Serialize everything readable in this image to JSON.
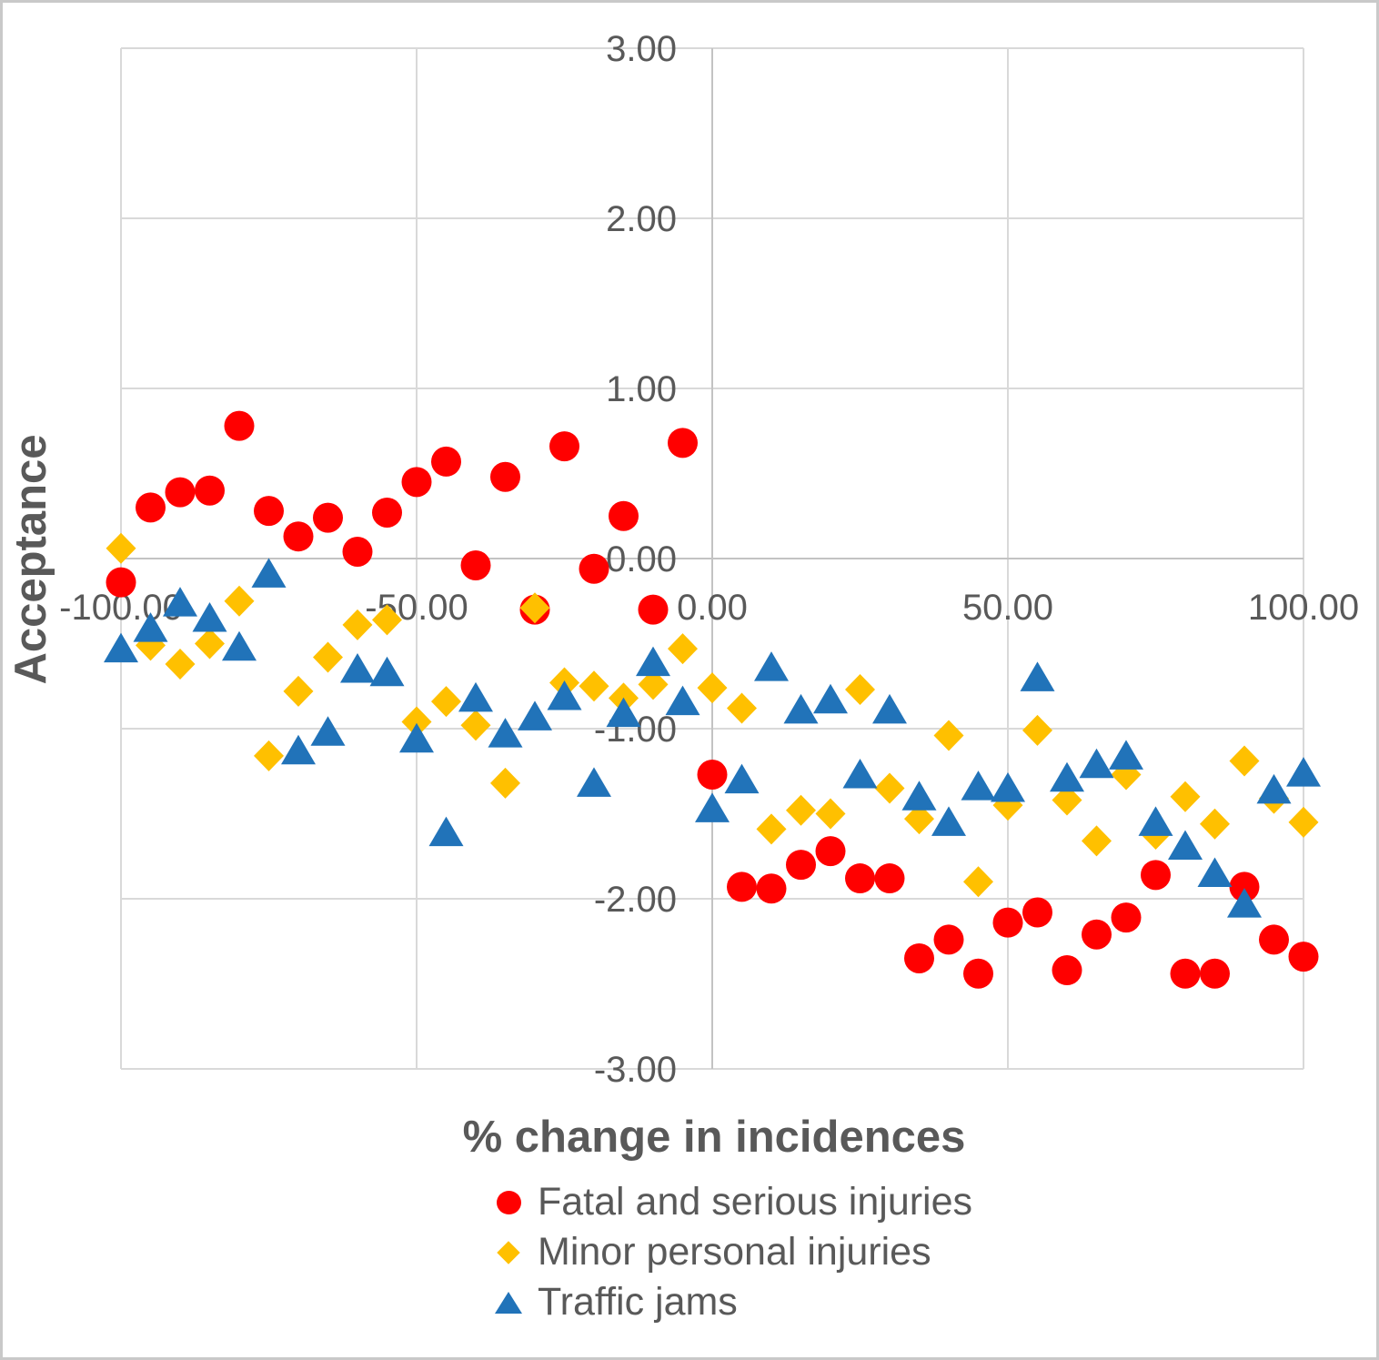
{
  "page": {
    "background": "#FFFFFF",
    "border_color": "#C9C9C9"
  },
  "chart_data": {
    "type": "scatter",
    "title": "",
    "xlabel": "% change in incidences",
    "ylabel": "Acceptance",
    "xlim": [
      -100,
      100
    ],
    "ylim": [
      -3,
      3
    ],
    "grid": true,
    "legend_position": "bottom-center",
    "colors": {
      "gridline": "#D9D9D9",
      "axis_line": "#C3C3C3",
      "text": "#595959"
    },
    "x_ticks": [
      {
        "v": -100,
        "label": "-100.00"
      },
      {
        "v": -50,
        "label": "-50.00"
      },
      {
        "v": 0,
        "label": "0.00"
      },
      {
        "v": 50,
        "label": "50.00"
      },
      {
        "v": 100,
        "label": "100.00"
      }
    ],
    "y_ticks": [
      {
        "v": 3,
        "label": "3.00"
      },
      {
        "v": 2,
        "label": "2.00"
      },
      {
        "v": 1,
        "label": "1.00"
      },
      {
        "v": 0,
        "label": "0.00"
      },
      {
        "v": -1,
        "label": "-1.00"
      },
      {
        "v": -2,
        "label": "-2.00"
      },
      {
        "v": -3,
        "label": "-3.00"
      }
    ],
    "series": [
      {
        "name": "Fatal and serious injuries",
        "marker": "circle",
        "color": "#FF0000",
        "points": [
          [
            -100,
            -0.14
          ],
          [
            -95,
            0.3
          ],
          [
            -90,
            0.39
          ],
          [
            -85,
            0.4
          ],
          [
            -80,
            0.78
          ],
          [
            -75,
            0.28
          ],
          [
            -70,
            0.13
          ],
          [
            -65,
            0.24
          ],
          [
            -60,
            0.04
          ],
          [
            -55,
            0.27
          ],
          [
            -50,
            0.45
          ],
          [
            -45,
            0.57
          ],
          [
            -40,
            -0.04
          ],
          [
            -35,
            0.48
          ],
          [
            -30,
            -0.3
          ],
          [
            -25,
            0.66
          ],
          [
            -20,
            -0.06
          ],
          [
            -15,
            0.25
          ],
          [
            -10,
            -0.3
          ],
          [
            -5,
            0.68
          ],
          [
            0,
            -1.27
          ],
          [
            5,
            -1.93
          ],
          [
            10,
            -1.94
          ],
          [
            15,
            -1.8
          ],
          [
            20,
            -1.72
          ],
          [
            25,
            -1.88
          ],
          [
            30,
            -1.88
          ],
          [
            35,
            -2.35
          ],
          [
            40,
            -2.24
          ],
          [
            45,
            -2.44
          ],
          [
            50,
            -2.14
          ],
          [
            55,
            -2.08
          ],
          [
            60,
            -2.42
          ],
          [
            65,
            -2.21
          ],
          [
            70,
            -2.11
          ],
          [
            75,
            -1.86
          ],
          [
            80,
            -2.44
          ],
          [
            85,
            -2.44
          ],
          [
            90,
            -1.93
          ],
          [
            95,
            -2.24
          ],
          [
            100,
            -2.34
          ]
        ]
      },
      {
        "name": "Minor personal injuries",
        "marker": "diamond",
        "color": "#FFC000",
        "points": [
          [
            -100,
            0.06
          ],
          [
            -95,
            -0.51
          ],
          [
            -90,
            -0.62
          ],
          [
            -85,
            -0.5
          ],
          [
            -80,
            -0.25
          ],
          [
            -75,
            -1.16
          ],
          [
            -70,
            -0.78
          ],
          [
            -65,
            -0.58
          ],
          [
            -60,
            -0.39
          ],
          [
            -55,
            -0.36
          ],
          [
            -50,
            -0.96
          ],
          [
            -45,
            -0.84
          ],
          [
            -40,
            -0.98
          ],
          [
            -35,
            -1.32
          ],
          [
            -30,
            -0.29
          ],
          [
            -25,
            -0.73
          ],
          [
            -20,
            -0.75
          ],
          [
            -15,
            -0.82
          ],
          [
            -10,
            -0.74
          ],
          [
            -5,
            -0.53
          ],
          [
            0,
            -0.76
          ],
          [
            5,
            -0.88
          ],
          [
            10,
            -1.59
          ],
          [
            15,
            -1.48
          ],
          [
            20,
            -1.5
          ],
          [
            25,
            -0.77
          ],
          [
            30,
            -1.35
          ],
          [
            35,
            -1.53
          ],
          [
            40,
            -1.04
          ],
          [
            45,
            -1.9
          ],
          [
            50,
            -1.45
          ],
          [
            55,
            -1.01
          ],
          [
            60,
            -1.42
          ],
          [
            65,
            -1.66
          ],
          [
            70,
            -1.27
          ],
          [
            75,
            -1.62
          ],
          [
            80,
            -1.4
          ],
          [
            85,
            -1.56
          ],
          [
            90,
            -1.19
          ],
          [
            95,
            -1.41
          ],
          [
            100,
            -1.55
          ]
        ]
      },
      {
        "name": "Traffic jams",
        "marker": "triangle",
        "color": "#2173B9",
        "points": [
          [
            -100,
            -0.53
          ],
          [
            -95,
            -0.41
          ],
          [
            -90,
            -0.26
          ],
          [
            -85,
            -0.35
          ],
          [
            -80,
            -0.52
          ],
          [
            -75,
            -0.09
          ],
          [
            -70,
            -1.13
          ],
          [
            -65,
            -1.02
          ],
          [
            -60,
            -0.65
          ],
          [
            -55,
            -0.67
          ],
          [
            -50,
            -1.06
          ],
          [
            -45,
            -1.61
          ],
          [
            -40,
            -0.82
          ],
          [
            -35,
            -1.03
          ],
          [
            -30,
            -0.93
          ],
          [
            -25,
            -0.81
          ],
          [
            -20,
            -1.32
          ],
          [
            -15,
            -0.91
          ],
          [
            -10,
            -0.61
          ],
          [
            -5,
            -0.84
          ],
          [
            0,
            -1.47
          ],
          [
            5,
            -1.3
          ],
          [
            10,
            -0.64
          ],
          [
            15,
            -0.89
          ],
          [
            20,
            -0.83
          ],
          [
            25,
            -1.27
          ],
          [
            30,
            -0.89
          ],
          [
            35,
            -1.4
          ],
          [
            40,
            -1.55
          ],
          [
            45,
            -1.34
          ],
          [
            50,
            -1.35
          ],
          [
            55,
            -0.7
          ],
          [
            60,
            -1.29
          ],
          [
            65,
            -1.21
          ],
          [
            70,
            -1.16
          ],
          [
            75,
            -1.55
          ],
          [
            80,
            -1.69
          ],
          [
            85,
            -1.85
          ],
          [
            90,
            -2.03
          ],
          [
            95,
            -1.36
          ],
          [
            100,
            -1.26
          ]
        ]
      }
    ]
  }
}
